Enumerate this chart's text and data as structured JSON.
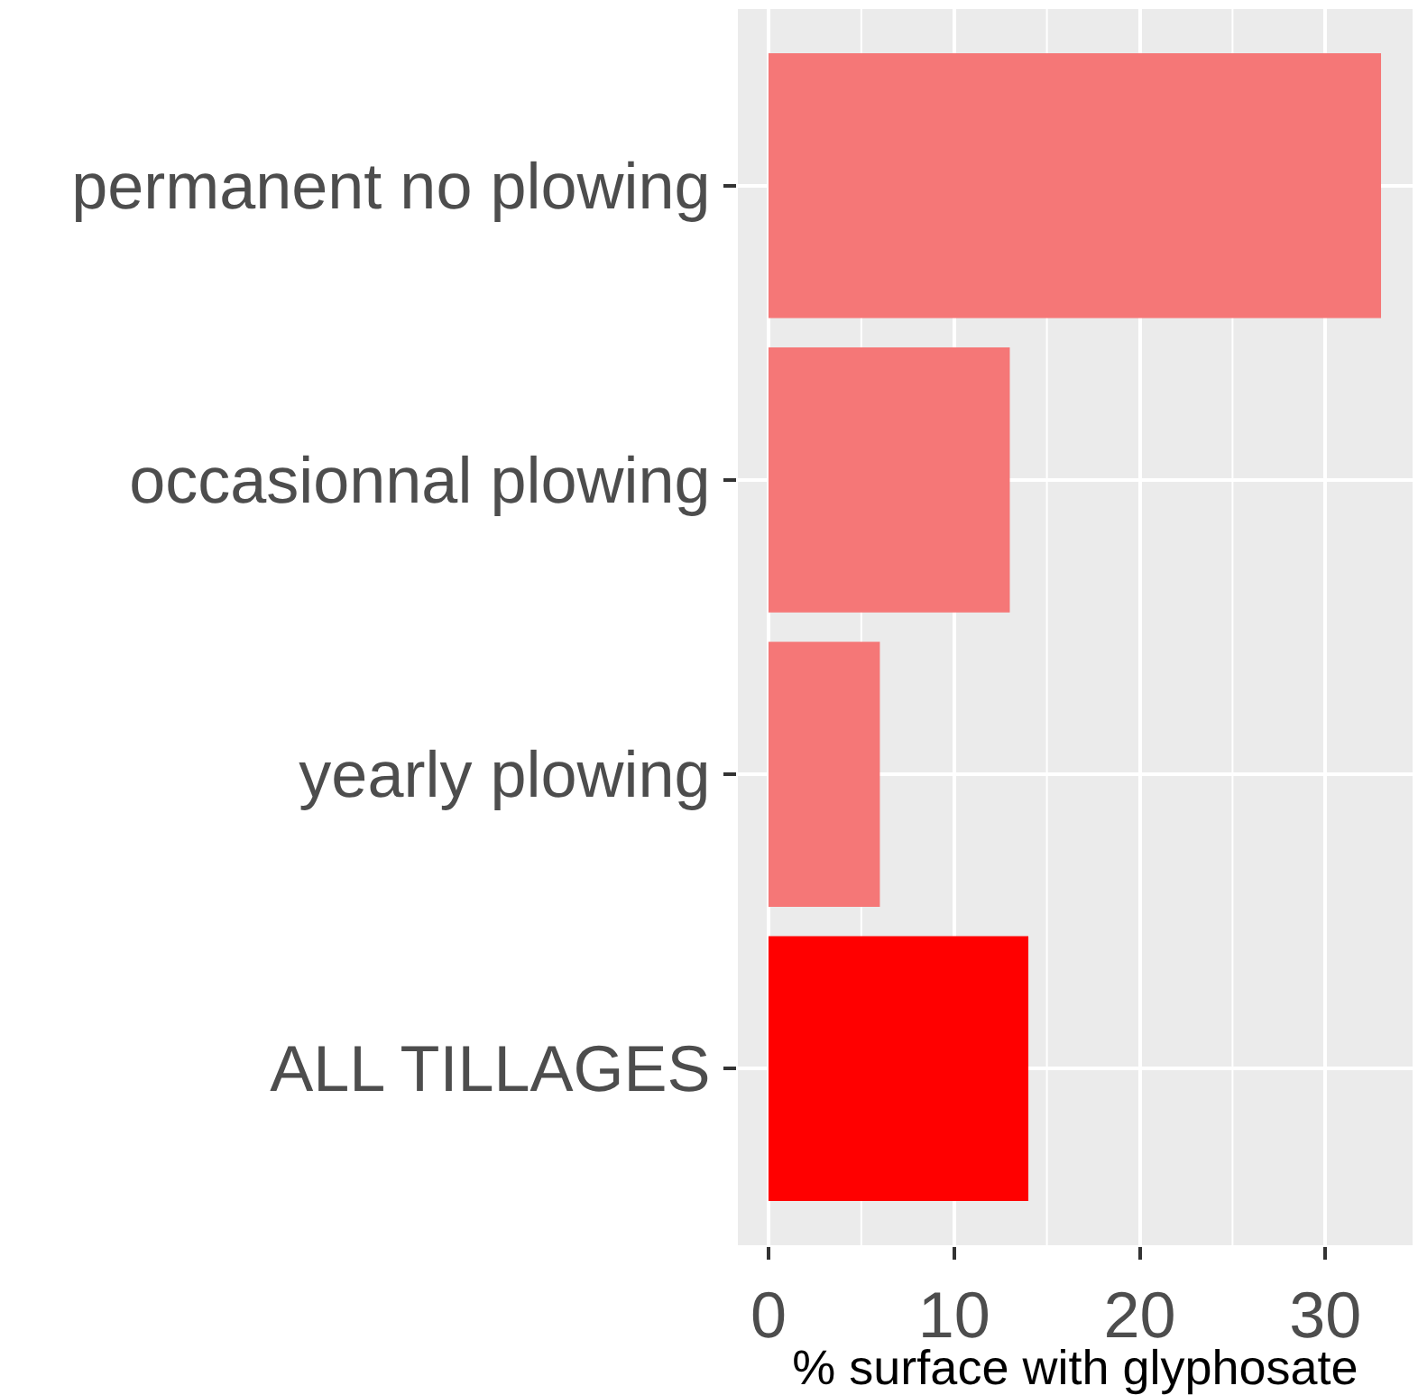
{
  "chart_data": {
    "type": "bar",
    "orientation": "horizontal",
    "xlabel": "% surface with glyphosate",
    "categories": [
      "permanent no plowing",
      "occasionnal plowing",
      "yearly plowing",
      "ALL TILLAGES"
    ],
    "values": [
      33,
      13,
      6,
      14
    ],
    "colors": [
      "#f57777",
      "#f57777",
      "#f57777",
      "#ff0000"
    ],
    "xlim": [
      -1.65,
      34.7
    ],
    "xticks": [
      0,
      {
        "value": 5,
        "label": null
      },
      10,
      {
        "value": 15,
        "label": null
      },
      20,
      {
        "value": 25,
        "label": null
      },
      30
    ],
    "grid": true
  }
}
